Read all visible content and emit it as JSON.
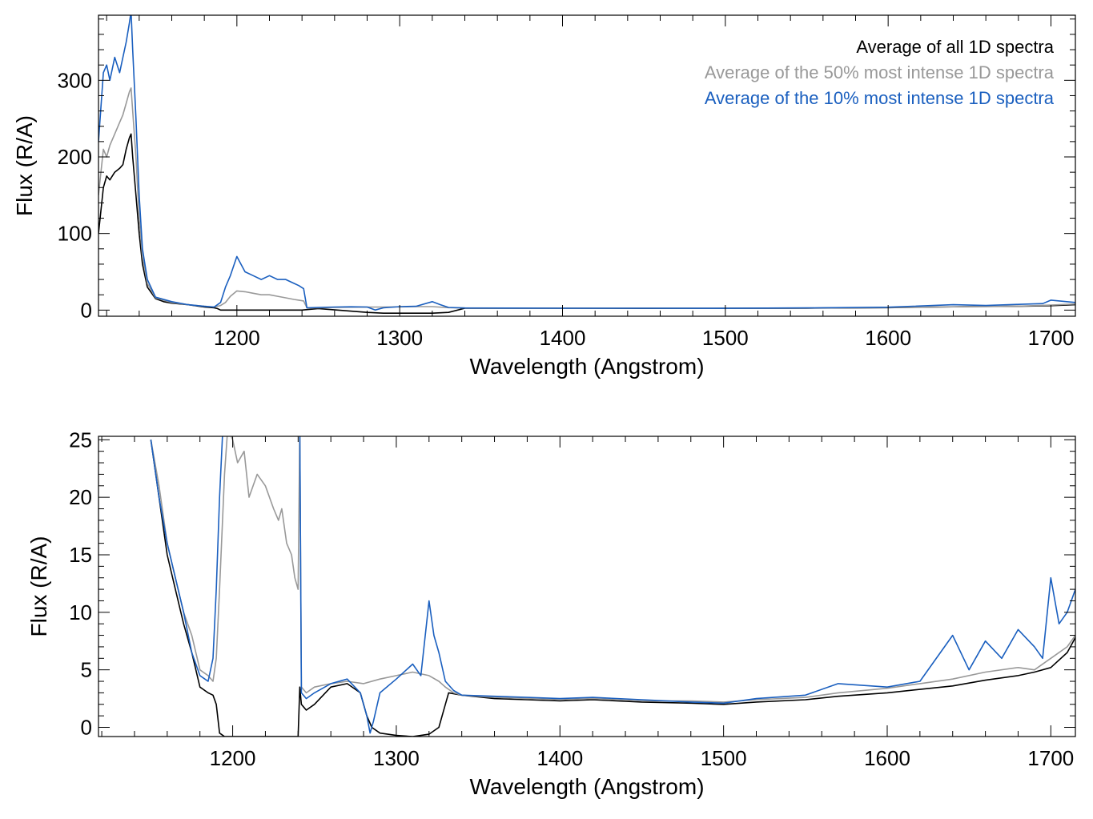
{
  "colors": {
    "all": "#000000",
    "top50": "#999999",
    "top10": "#1a5fbf"
  },
  "chart_data": [
    {
      "type": "line",
      "title": "",
      "xlabel": "Wavelength (Angstrom)",
      "ylabel": "Flux (R/A)",
      "xlim": [
        1115,
        1715
      ],
      "ylim": [
        -8,
        385
      ],
      "xticks": [
        1200,
        1300,
        1400,
        1500,
        1600,
        1700
      ],
      "xtick_labels": [
        "1200",
        "1300",
        "1400",
        "1500",
        "1600",
        "1700"
      ],
      "yticks": [
        0,
        100,
        200,
        300
      ],
      "ytick_labels": [
        "0",
        "100",
        "200",
        "300"
      ],
      "legend": {
        "position": "top-right",
        "entries": [
          "Average of all 1D spectra",
          "Average of the 50% most intense 1D spectra",
          "Average of the 10% most intense 1D spectra"
        ]
      },
      "series": [
        {
          "name": "Average of all 1D spectra",
          "color_key": "all",
          "x": [
            1115,
            1118,
            1120,
            1122,
            1125,
            1128,
            1130,
            1132,
            1134,
            1135,
            1136,
            1138,
            1140,
            1142,
            1145,
            1150,
            1155,
            1160,
            1170,
            1180,
            1186,
            1188,
            1190,
            1192,
            1200,
            1210,
            1220,
            1230,
            1240,
            1250,
            1280,
            1290,
            1300,
            1310,
            1320,
            1330,
            1340,
            1400,
            1450,
            1500,
            1550,
            1600,
            1650,
            1680,
            1700,
            1715
          ],
          "y": [
            100,
            160,
            175,
            170,
            180,
            185,
            190,
            210,
            225,
            230,
            200,
            150,
            100,
            60,
            30,
            15,
            11,
            9,
            7,
            4,
            3,
            2,
            0,
            0,
            0,
            0,
            0,
            0,
            0,
            2,
            -3,
            -4,
            -4,
            -4,
            -4,
            -3,
            2.5,
            2.5,
            2.2,
            2.3,
            2.6,
            3.2,
            4.5,
            5.0,
            5.8,
            7.0
          ]
        },
        {
          "name": "Average of the 50% most intense 1D spectra",
          "color_key": "top50",
          "x": [
            1115,
            1118,
            1120,
            1122,
            1125,
            1128,
            1130,
            1132,
            1134,
            1135,
            1136,
            1138,
            1140,
            1142,
            1145,
            1150,
            1160,
            1170,
            1180,
            1186,
            1190,
            1193,
            1196,
            1200,
            1205,
            1210,
            1215,
            1220,
            1225,
            1230,
            1235,
            1238,
            1241,
            1243,
            1250,
            1260,
            1270,
            1280,
            1290,
            1300,
            1310,
            1320,
            1330,
            1340,
            1400,
            1450,
            1500,
            1550,
            1600,
            1650,
            1680,
            1700,
            1715
          ],
          "y": [
            150,
            210,
            200,
            215,
            230,
            245,
            255,
            270,
            285,
            290,
            260,
            200,
            120,
            70,
            35,
            16,
            10,
            7,
            5,
            4,
            6,
            10,
            18,
            25,
            24,
            22,
            20,
            20,
            18,
            16,
            14,
            13,
            12,
            3,
            3.0,
            3.6,
            3.8,
            3.9,
            4.0,
            4.2,
            4.5,
            4.5,
            3.2,
            2.8,
            2.5,
            2.4,
            2.3,
            2.7,
            3.4,
            4.6,
            5.2,
            6.5,
            8.0
          ]
        },
        {
          "name": "Average of the 10% most intense 1D spectra",
          "color_key": "top10",
          "x": [
            1115,
            1118,
            1120,
            1122,
            1125,
            1128,
            1130,
            1132,
            1134,
            1135,
            1136,
            1138,
            1140,
            1142,
            1145,
            1150,
            1160,
            1170,
            1180,
            1186,
            1190,
            1193,
            1196,
            1200,
            1205,
            1210,
            1215,
            1220,
            1225,
            1230,
            1235,
            1238,
            1241,
            1243,
            1250,
            1260,
            1270,
            1280,
            1285,
            1290,
            1300,
            1310,
            1320,
            1325,
            1330,
            1340,
            1400,
            1450,
            1500,
            1550,
            1600,
            1640,
            1660,
            1680,
            1695,
            1700,
            1715
          ],
          "y": [
            220,
            310,
            320,
            300,
            330,
            310,
            330,
            350,
            375,
            390,
            340,
            250,
            150,
            80,
            40,
            17,
            11,
            7,
            5,
            4,
            10,
            30,
            45,
            70,
            50,
            45,
            40,
            45,
            40,
            40,
            35,
            32,
            28,
            3,
            3.5,
            4.0,
            4.3,
            4.0,
            0.2,
            3.0,
            4.5,
            5.0,
            11.0,
            7.0,
            3.5,
            2.8,
            2.5,
            2.4,
            2.3,
            2.9,
            3.8,
            7.0,
            6.0,
            7.5,
            8.5,
            13.0,
            10.0
          ]
        }
      ]
    },
    {
      "type": "line",
      "title": "",
      "xlabel": "Wavelength (Angstrom)",
      "ylabel": "Flux (R/A)",
      "xlim": [
        1118,
        1715
      ],
      "ylim": [
        -0.8,
        25.3
      ],
      "xticks": [
        1200,
        1300,
        1400,
        1500,
        1600,
        1700
      ],
      "xtick_labels": [
        "1200",
        "1300",
        "1400",
        "1500",
        "1600",
        "1700"
      ],
      "yticks": [
        0,
        5,
        10,
        15,
        20,
        25
      ],
      "ytick_labels": [
        "0",
        "5",
        "10",
        "15",
        "20",
        "25"
      ],
      "series": [
        {
          "name": "Average of all 1D spectra",
          "color_key": "all",
          "x": [
            1150,
            1155,
            1160,
            1165,
            1170,
            1175,
            1180,
            1185,
            1188,
            1190,
            1192,
            1195,
            1200,
            1220,
            1240,
            1241,
            1242,
            1245,
            1250,
            1260,
            1270,
            1278,
            1282,
            1285,
            1290,
            1300,
            1310,
            1320,
            1326,
            1330,
            1332,
            1340,
            1360,
            1380,
            1400,
            1420,
            1450,
            1480,
            1500,
            1520,
            1550,
            1570,
            1600,
            1620,
            1640,
            1660,
            1680,
            1690,
            1700,
            1710,
            1715
          ],
          "y": [
            25,
            20,
            15,
            12,
            9,
            6.5,
            3.5,
            3.0,
            2.8,
            2.0,
            -0.5,
            -0.8,
            -0.8,
            -0.8,
            -0.8,
            3.5,
            2.0,
            1.5,
            2.0,
            3.5,
            3.8,
            3.0,
            1.0,
            0.0,
            -0.5,
            -0.7,
            -0.8,
            -0.6,
            0.0,
            2.0,
            3.0,
            2.8,
            2.5,
            2.4,
            2.3,
            2.4,
            2.2,
            2.1,
            2.0,
            2.2,
            2.4,
            2.7,
            3.0,
            3.3,
            3.6,
            4.1,
            4.5,
            4.8,
            5.2,
            6.5,
            7.8
          ]
        },
        {
          "name": "Average of the 50% most intense 1D spectra",
          "color_key": "top50",
          "x": [
            1150,
            1155,
            1160,
            1165,
            1170,
            1175,
            1180,
            1185,
            1188,
            1190,
            1192,
            1195,
            1197,
            1200,
            1203,
            1207,
            1210,
            1215,
            1220,
            1225,
            1228,
            1230,
            1233,
            1236,
            1238,
            1240,
            1241,
            1242,
            1245,
            1250,
            1260,
            1270,
            1280,
            1290,
            1300,
            1310,
            1320,
            1326,
            1330,
            1335,
            1340,
            1360,
            1380,
            1400,
            1420,
            1450,
            1480,
            1500,
            1520,
            1550,
            1570,
            1600,
            1620,
            1640,
            1660,
            1680,
            1690,
            1700,
            1710,
            1715
          ],
          "y": [
            25,
            21,
            16,
            13,
            10,
            8,
            5,
            4.5,
            4.0,
            6.0,
            12,
            22,
            26,
            25,
            23,
            24,
            20,
            22,
            21,
            19,
            18,
            19,
            16,
            15,
            13,
            12,
            26,
            3.5,
            3.0,
            3.5,
            3.8,
            4.0,
            3.8,
            4.2,
            4.5,
            4.8,
            4.5,
            4.0,
            3.5,
            3.0,
            2.8,
            2.6,
            2.5,
            2.4,
            2.5,
            2.3,
            2.3,
            2.2,
            2.4,
            2.6,
            3.0,
            3.4,
            3.8,
            4.2,
            4.8,
            5.2,
            5.0,
            6.0,
            7.0,
            8.0
          ]
        },
        {
          "name": "Average of the 10% most intense 1D spectra",
          "color_key": "top10",
          "x": [
            1150,
            1155,
            1160,
            1165,
            1170,
            1175,
            1180,
            1185,
            1188,
            1190,
            1192,
            1194,
            1196,
            1238,
            1240,
            1241,
            1242,
            1245,
            1250,
            1260,
            1270,
            1278,
            1282,
            1284,
            1286,
            1290,
            1300,
            1310,
            1315,
            1320,
            1323,
            1326,
            1330,
            1335,
            1340,
            1360,
            1380,
            1400,
            1420,
            1450,
            1480,
            1500,
            1520,
            1550,
            1570,
            1600,
            1620,
            1640,
            1650,
            1660,
            1670,
            1680,
            1690,
            1695,
            1700,
            1705,
            1710,
            1715
          ],
          "y": [
            25,
            20,
            16,
            13,
            10,
            6.5,
            4.5,
            4.0,
            6.0,
            12,
            20,
            26,
            26,
            26,
            26,
            26,
            3.0,
            2.5,
            3.0,
            3.8,
            4.2,
            3.0,
            1.0,
            -0.5,
            0.5,
            3.0,
            4.2,
            5.5,
            4.5,
            11.0,
            8.0,
            6.5,
            4.0,
            3.2,
            2.8,
            2.7,
            2.6,
            2.5,
            2.6,
            2.4,
            2.2,
            2.1,
            2.5,
            2.8,
            3.8,
            3.5,
            4.0,
            8.0,
            5.0,
            7.5,
            6.0,
            8.5,
            7.0,
            6.0,
            13.0,
            9.0,
            10.0,
            12.0
          ]
        }
      ]
    }
  ]
}
